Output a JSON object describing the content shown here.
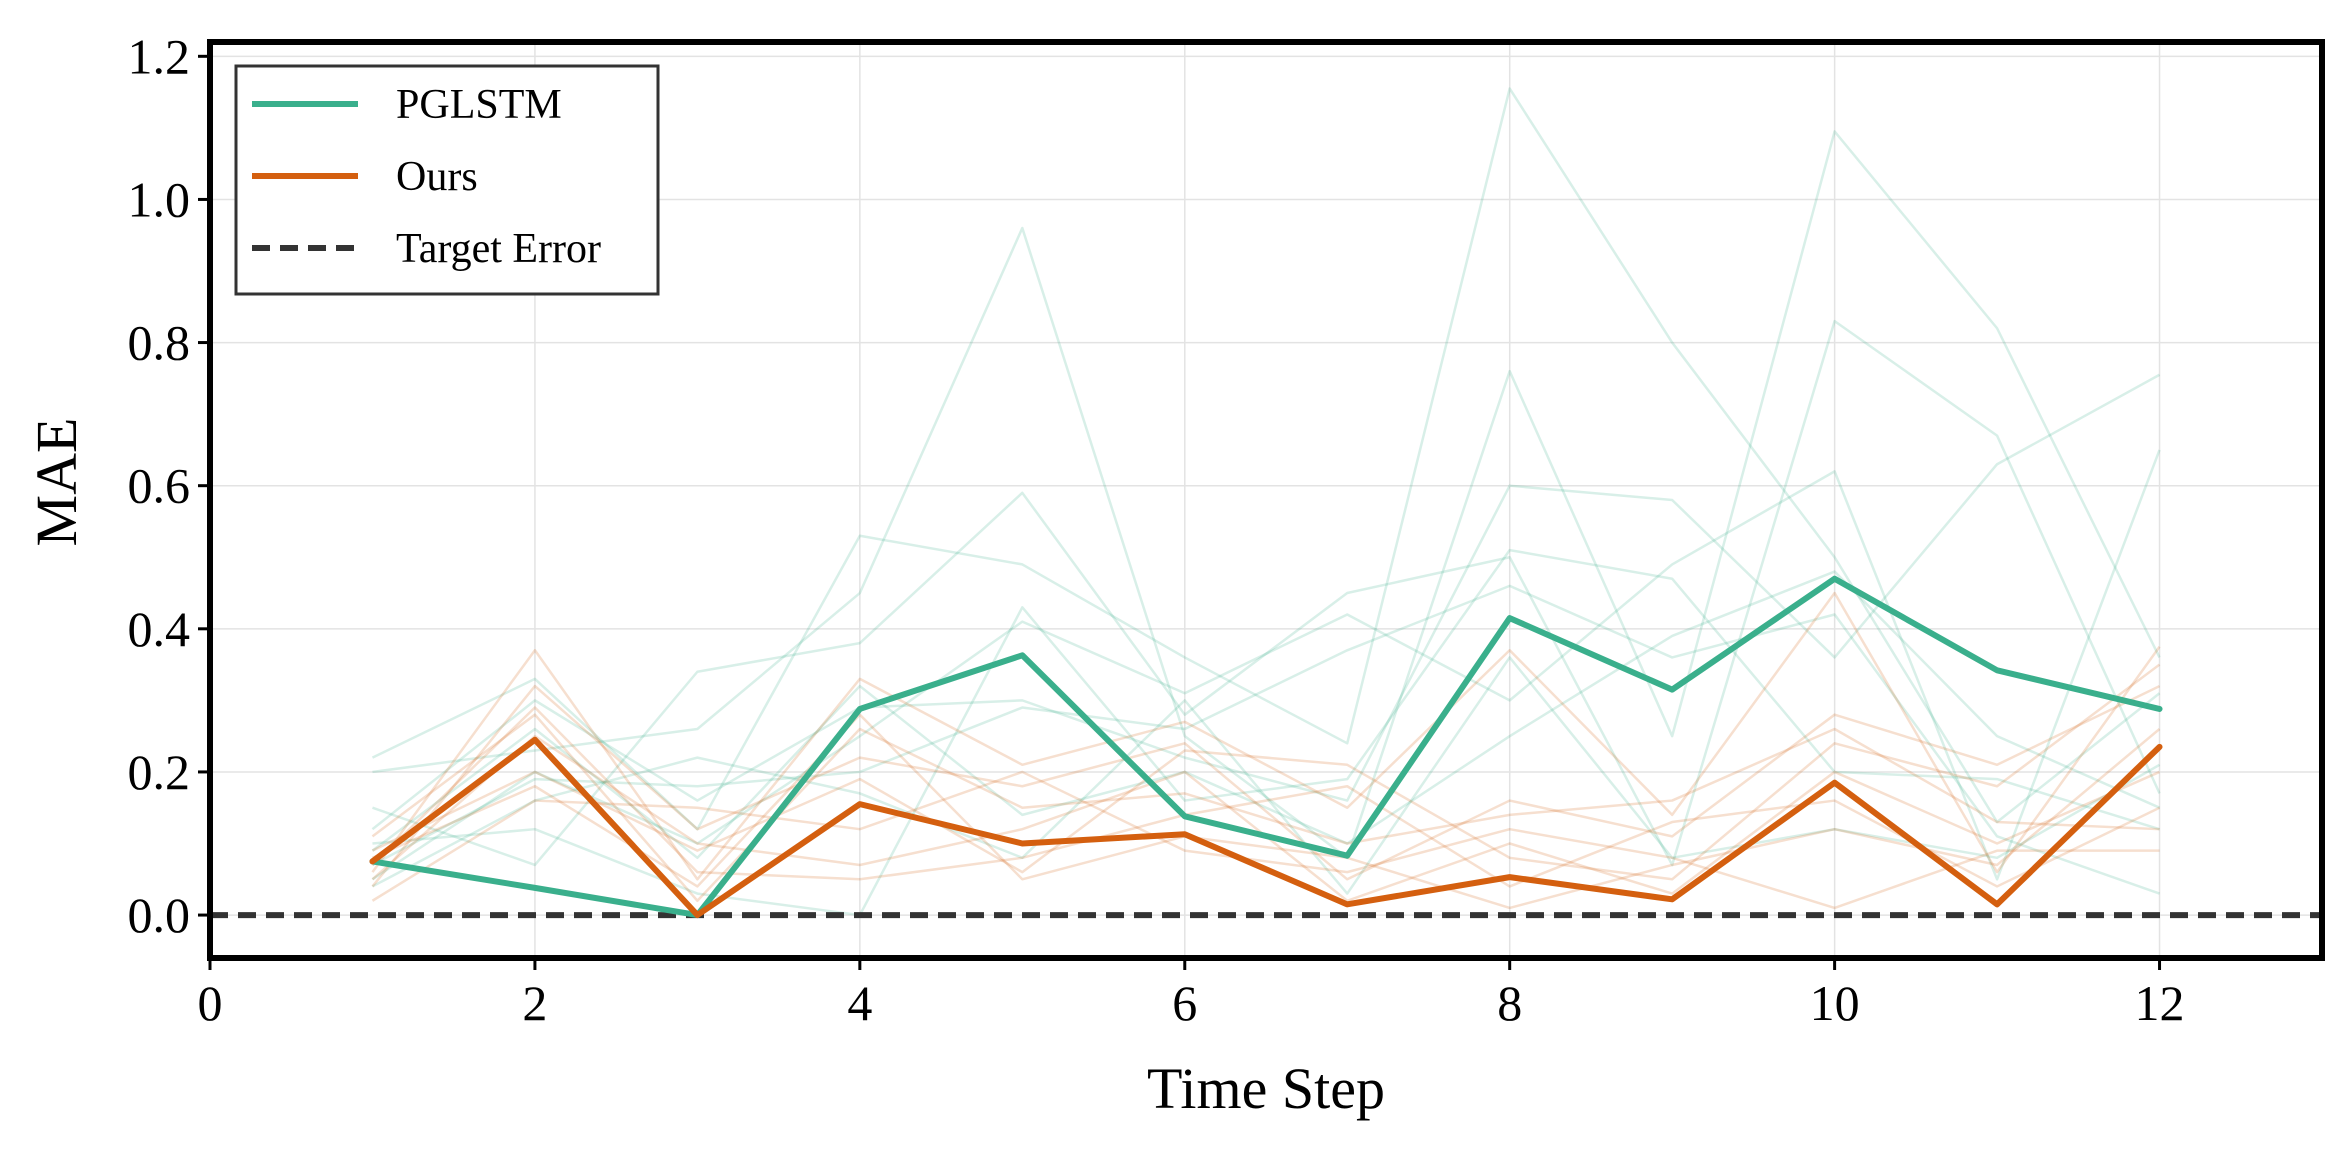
{
  "chart_data": {
    "type": "line",
    "title": "",
    "xlabel": "Time Step",
    "ylabel": "MAE",
    "xlim": [
      0,
      13
    ],
    "ylim": [
      -0.06,
      1.22
    ],
    "xticks": [
      0,
      2,
      4,
      6,
      8,
      10,
      12
    ],
    "xtick_labels": [
      "0",
      "2",
      "4",
      "6",
      "8",
      "10",
      "12"
    ],
    "yticks": [
      0.0,
      0.2,
      0.4,
      0.6,
      0.8,
      1.0,
      1.2
    ],
    "ytick_labels": [
      "0.0",
      "0.2",
      "0.4",
      "0.6",
      "0.8",
      "1.0",
      "1.2"
    ],
    "grid": true,
    "legend_position": "top-left",
    "x": [
      1,
      2,
      3,
      4,
      5,
      6,
      7,
      8,
      9,
      10,
      11,
      12
    ],
    "series": [
      {
        "name": "PGLSTM",
        "color": "#3aaf8c",
        "values": [
          0.075,
          0.038,
          0.0,
          0.288,
          0.363,
          0.138,
          0.083,
          0.415,
          0.315,
          0.47,
          0.342,
          0.288
        ]
      },
      {
        "name": "Ours",
        "color": "#d45f0f",
        "values": [
          0.075,
          0.245,
          0.0,
          0.155,
          0.1,
          0.113,
          0.015,
          0.053,
          0.022,
          0.185,
          0.015,
          0.235
        ]
      }
    ],
    "reference_line": {
      "name": "Target Error",
      "color": "#333333",
      "y": 0.0,
      "style": "dashed"
    },
    "background_series": {
      "PGLSTM": [
        [
          0.22,
          0.33,
          0.12,
          0.53,
          0.49,
          0.36,
          0.24,
          1.155,
          0.8,
          0.5,
          0.13,
          0.31
        ],
        [
          0.2,
          0.23,
          0.26,
          0.45,
          0.96,
          0.25,
          0.08,
          0.76,
          0.25,
          1.095,
          0.82,
          0.36
        ],
        [
          0.15,
          0.07,
          0.34,
          0.38,
          0.59,
          0.28,
          0.45,
          0.5,
          0.07,
          0.83,
          0.67,
          0.17
        ],
        [
          0.12,
          0.3,
          0.16,
          0.29,
          0.3,
          0.22,
          0.16,
          0.6,
          0.58,
          0.36,
          0.63,
          0.755
        ],
        [
          0.05,
          0.2,
          0.1,
          0.25,
          0.41,
          0.31,
          0.42,
          0.3,
          0.49,
          0.62,
          0.05,
          0.65
        ],
        [
          0.07,
          0.19,
          0.18,
          0.2,
          0.29,
          0.26,
          0.37,
          0.46,
          0.36,
          0.42,
          0.11,
          0.03
        ],
        [
          0.1,
          0.12,
          0.03,
          0.0,
          0.43,
          0.16,
          0.19,
          0.51,
          0.47,
          0.2,
          0.19,
          0.12
        ],
        [
          0.04,
          0.16,
          0.22,
          0.17,
          0.08,
          0.3,
          0.03,
          0.36,
          0.08,
          0.12,
          0.08,
          0.21
        ],
        [
          0.09,
          0.26,
          0.08,
          0.32,
          0.14,
          0.2,
          0.1,
          0.25,
          0.39,
          0.48,
          0.25,
          0.15
        ]
      ],
      "Ours": [
        [
          0.06,
          0.37,
          0.05,
          0.33,
          0.21,
          0.27,
          0.15,
          0.37,
          0.14,
          0.45,
          0.06,
          0.375
        ],
        [
          0.04,
          0.32,
          0.12,
          0.22,
          0.18,
          0.24,
          0.05,
          0.16,
          0.11,
          0.28,
          0.21,
          0.32
        ],
        [
          0.11,
          0.28,
          0.02,
          0.26,
          0.15,
          0.17,
          0.1,
          0.14,
          0.16,
          0.26,
          0.13,
          0.12
        ],
        [
          0.09,
          0.2,
          0.09,
          0.19,
          0.06,
          0.23,
          0.21,
          0.08,
          0.05,
          0.24,
          0.18,
          0.35
        ],
        [
          0.02,
          0.16,
          0.15,
          0.12,
          0.2,
          0.09,
          0.06,
          0.12,
          0.08,
          0.01,
          0.09,
          0.09
        ],
        [
          0.07,
          0.29,
          0.06,
          0.05,
          0.08,
          0.14,
          0.18,
          0.04,
          0.13,
          0.16,
          0.04,
          0.15
        ],
        [
          0.05,
          0.25,
          0.1,
          0.07,
          0.12,
          0.2,
          0.02,
          0.1,
          0.03,
          0.2,
          0.1,
          0.2
        ],
        [
          0.08,
          0.18,
          0.04,
          0.28,
          0.05,
          0.11,
          0.08,
          0.01,
          0.07,
          0.12,
          0.07,
          0.26
        ]
      ]
    }
  }
}
